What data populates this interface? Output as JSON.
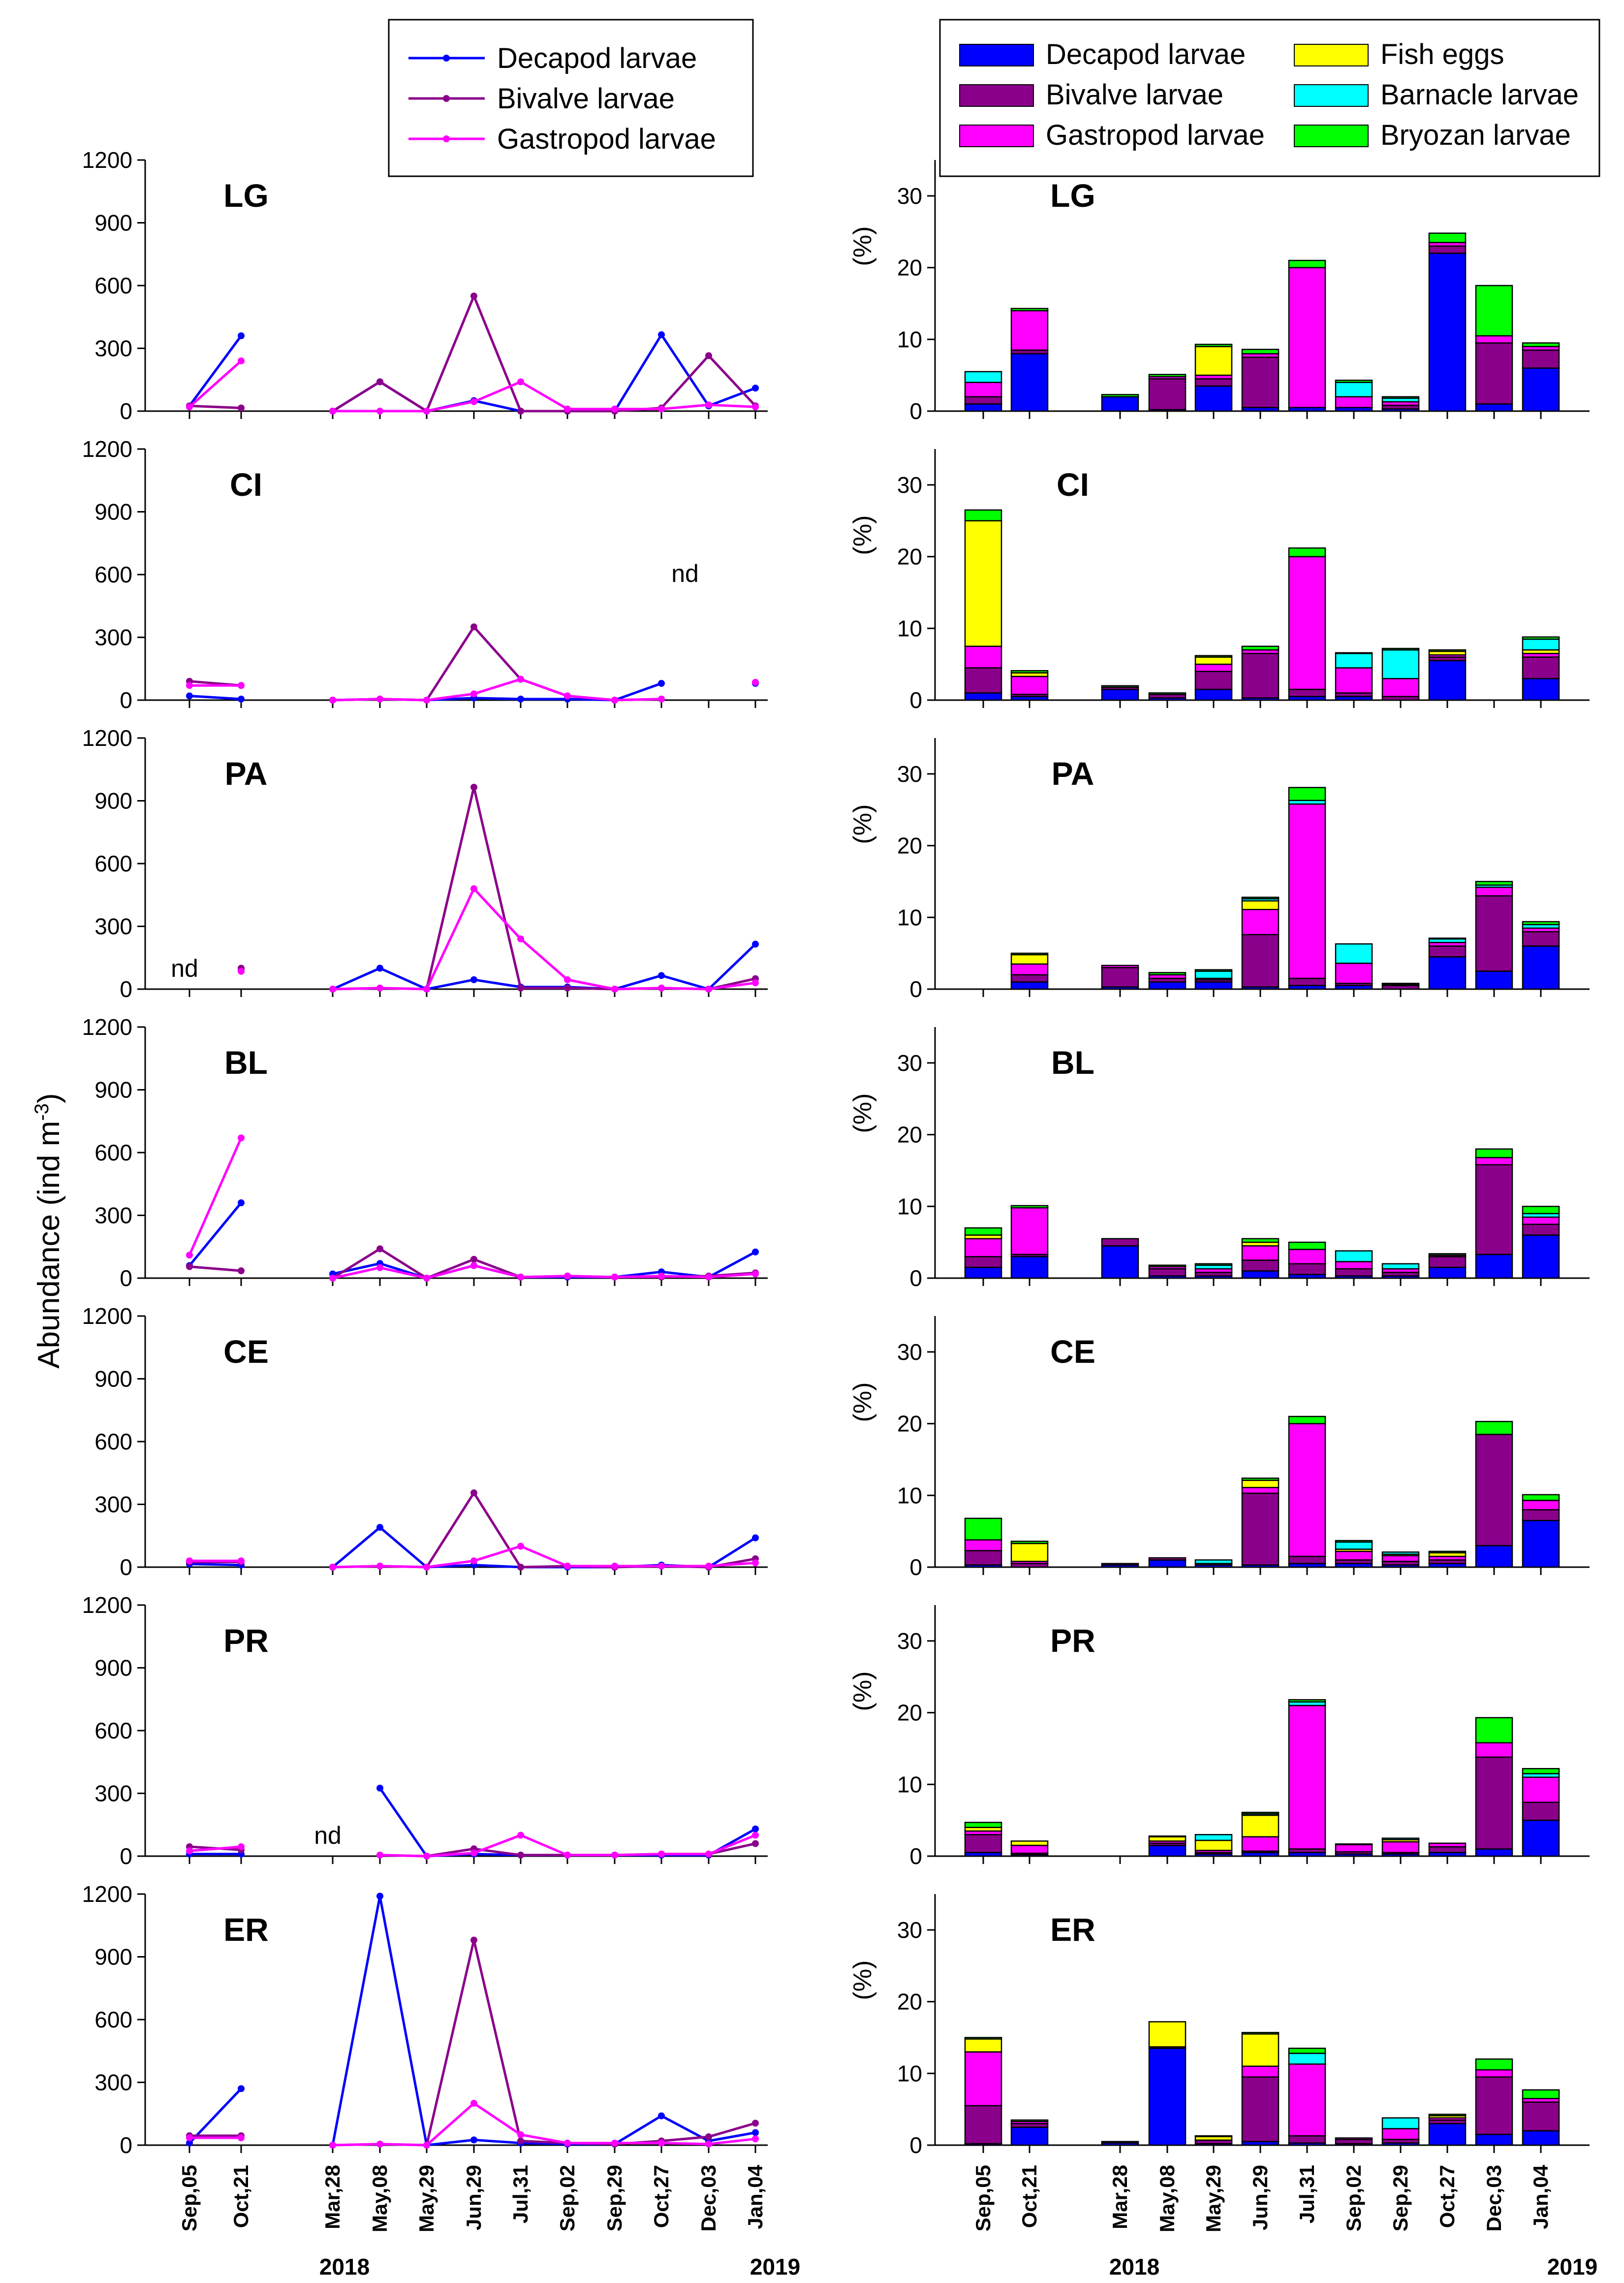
{
  "chart_data": {
    "type": "composite",
    "ylabel_left": "Abundance (ind m",
    "ylabel_left_sup": "-3",
    "ylabel_left_close": ")",
    "ylabel_right": "(%)",
    "year_labels": [
      "2018",
      "2019"
    ],
    "nd_label": "nd",
    "line_dates": [
      "Sep,05",
      "Oct,21",
      "Mar,28",
      "May,08",
      "May,29",
      "Jun,29",
      "Jul,31",
      "Sep,02",
      "Sep,29",
      "Oct,27",
      "Dec,03",
      "Jan,04"
    ],
    "bar_dates": [
      "Sep,05",
      "Oct,21",
      "Mar,28",
      "May,08",
      "May,29",
      "Jun,29",
      "Jul,31",
      "Sep,02",
      "Sep,29",
      "Oct,27",
      "Dec,03",
      "Jan,04"
    ],
    "line_legend": [
      {
        "name": "Decapod larvae",
        "color": "#0000ff"
      },
      {
        "name": "Bivalve larvae",
        "color": "#8b008b"
      },
      {
        "name": "Gastropod larvae",
        "color": "#ff00ff"
      }
    ],
    "bar_legend": [
      {
        "name": "Decapod larvae",
        "color": "#0000ff"
      },
      {
        "name": "Bivalve larvae",
        "color": "#8b008b"
      },
      {
        "name": "Gastropod larvae",
        "color": "#ff00ff"
      },
      {
        "name": "Fish eggs",
        "color": "#ffff00"
      },
      {
        "name": "Barnacle larvae",
        "color": "#00ffff"
      },
      {
        "name": "Bryozan larvae",
        "color": "#00ff00"
      }
    ],
    "line_ylim": [
      0,
      1200
    ],
    "line_yticks": [
      0,
      300,
      600,
      900,
      1200
    ],
    "bar_ylim": [
      0,
      35
    ],
    "bar_yticks": [
      0,
      10,
      20,
      30
    ],
    "panels": [
      {
        "site": "LG",
        "lines": [
          [
            25,
            360,
            0,
            140,
            0,
            50,
            0,
            0,
            0,
            365,
            25,
            110
          ],
          [
            25,
            15,
            0,
            140,
            0,
            550,
            0,
            0,
            0,
            15,
            265,
            25
          ],
          [
            20,
            240,
            0,
            0,
            0,
            45,
            140,
            10,
            10,
            10,
            30,
            20
          ]
        ],
        "bars": [
          [
            1,
            1,
            2,
            0,
            1.5,
            0
          ],
          [
            8,
            0.5,
            5.5,
            0,
            0,
            0.3
          ],
          [
            2,
            0,
            0,
            0,
            0,
            0.3
          ],
          [
            0.2,
            4.3,
            0.3,
            0,
            0,
            0.3
          ],
          [
            3.5,
            1,
            0.5,
            4,
            0,
            0.3
          ],
          [
            0.5,
            7,
            0.5,
            0,
            0,
            0.6
          ],
          [
            0.5,
            0,
            19.5,
            0,
            0,
            1
          ],
          [
            0.5,
            0,
            1.5,
            0,
            2,
            0.3
          ],
          [
            0.3,
            0.5,
            0.5,
            0,
            0.5,
            0.2
          ],
          [
            22,
            1,
            0.5,
            0,
            0,
            1.3
          ],
          [
            1,
            8.5,
            1,
            0,
            0,
            7
          ],
          [
            6,
            2.5,
            0.5,
            0,
            0,
            0.5
          ]
        ],
        "nd": []
      },
      {
        "site": "CI",
        "lines": [
          [
            20,
            5,
            0,
            5,
            0,
            10,
            5,
            5,
            0,
            80,
            null,
            80
          ],
          [
            90,
            70,
            0,
            5,
            0,
            350,
            100,
            20,
            0,
            5,
            null,
            85
          ],
          [
            70,
            70,
            0,
            5,
            0,
            30,
            100,
            20,
            0,
            5,
            null,
            85
          ]
        ],
        "bars": [
          [
            1,
            3.5,
            3,
            17.5,
            0,
            1.5
          ],
          [
            0.5,
            0.3,
            2.5,
            0.5,
            0,
            0.3
          ],
          [
            1.5,
            0.3,
            0,
            0,
            0,
            0.2
          ],
          [
            0.3,
            0.5,
            0,
            0,
            0,
            0.2
          ],
          [
            1.5,
            2.5,
            1,
            1,
            0,
            0.2
          ],
          [
            0.3,
            6.2,
            0.5,
            0,
            0,
            0.5
          ],
          [
            0.5,
            1,
            18.5,
            0,
            0,
            1.2
          ],
          [
            0.5,
            0.5,
            3.5,
            0,
            2,
            0.1
          ],
          [
            0,
            0.5,
            2.5,
            0,
            4,
            0.2
          ],
          [
            5.5,
            0.5,
            0.3,
            0.5,
            0,
            0.2
          ],
          [
            0,
            0,
            0,
            0,
            0,
            0
          ],
          [
            3,
            3,
            0.5,
            0.5,
            1.5,
            0.3
          ]
        ],
        "nd": [
          {
            "after": 9
          }
        ]
      },
      {
        "site": "PA",
        "lines": [
          [
            null,
            90,
            0,
            100,
            0,
            45,
            10,
            10,
            0,
            65,
            0,
            215
          ],
          [
            null,
            100,
            0,
            5,
            0,
            965,
            5,
            5,
            0,
            5,
            0,
            50
          ],
          [
            null,
            85,
            0,
            5,
            0,
            480,
            240,
            45,
            0,
            5,
            0,
            30
          ]
        ],
        "bars": [
          [
            0,
            0,
            0,
            0,
            0,
            0
          ],
          [
            1,
            1,
            1.5,
            1.3,
            0,
            0.2
          ],
          [
            0.3,
            2.7,
            0.3,
            0,
            0,
            0
          ],
          [
            1,
            0.5,
            0.5,
            0,
            0,
            0.3
          ],
          [
            1,
            0.3,
            0.2,
            0,
            1,
            0.2
          ],
          [
            0.3,
            7.3,
            3.5,
            1.2,
            0.3,
            0.2
          ],
          [
            0.5,
            1,
            24.3,
            0,
            0.5,
            1.8
          ],
          [
            0.5,
            0.3,
            2.8,
            0,
            2.7,
            0
          ],
          [
            0,
            0.5,
            0.1,
            0,
            0.1,
            0.1
          ],
          [
            4.5,
            1.5,
            0.5,
            0,
            0.5,
            0.1
          ],
          [
            2.5,
            10.5,
            1.2,
            0,
            0.3,
            0.5
          ],
          [
            6,
            2,
            0.5,
            0,
            0.5,
            0.4
          ]
        ],
        "nd": [
          {
            "at": 0
          }
        ]
      },
      {
        "site": "BL",
        "lines": [
          [
            60,
            360,
            20,
            70,
            0,
            60,
            5,
            5,
            5,
            30,
            5,
            125
          ],
          [
            55,
            35,
            0,
            140,
            0,
            90,
            5,
            10,
            5,
            5,
            10,
            25
          ],
          [
            110,
            670,
            0,
            50,
            0,
            60,
            5,
            10,
            5,
            10,
            5,
            20
          ]
        ],
        "bars": [
          [
            1.5,
            1.5,
            2.5,
            0.5,
            0,
            1
          ],
          [
            3,
            0.3,
            6.5,
            0,
            0,
            0.3
          ],
          [
            4.5,
            1,
            0,
            0,
            0,
            0
          ],
          [
            0.3,
            1,
            0.3,
            0,
            0,
            0.2
          ],
          [
            0.3,
            0.5,
            0.5,
            0,
            0.5,
            0.2
          ],
          [
            1,
            1.5,
            2,
            0.5,
            0,
            0.5
          ],
          [
            0.5,
            1.5,
            2,
            0,
            0,
            1
          ],
          [
            0.3,
            1,
            1,
            0,
            1.5,
            0
          ],
          [
            0.3,
            0.5,
            0.5,
            0,
            0.7,
            0
          ],
          [
            1.5,
            1.5,
            0.2,
            0,
            0,
            0.2
          ],
          [
            3.3,
            12.5,
            1,
            0,
            0,
            1.2
          ],
          [
            6,
            1.5,
            1,
            0,
            0.5,
            1
          ]
        ],
        "nd": []
      },
      {
        "site": "CE",
        "lines": [
          [
            15,
            10,
            0,
            190,
            0,
            10,
            0,
            0,
            0,
            10,
            0,
            140
          ],
          [
            25,
            25,
            0,
            5,
            0,
            355,
            0,
            5,
            0,
            5,
            0,
            40
          ],
          [
            30,
            30,
            0,
            5,
            0,
            30,
            100,
            5,
            5,
            5,
            5,
            20
          ]
        ],
        "bars": [
          [
            0.3,
            2,
            1.5,
            0,
            0,
            3
          ],
          [
            0,
            0.5,
            0.3,
            2.5,
            0,
            0.3
          ],
          [
            0.3,
            0.2,
            0,
            0,
            0,
            0
          ],
          [
            1,
            0.3,
            0,
            0,
            0,
            0
          ],
          [
            0.3,
            0.2,
            0,
            0,
            0.5,
            0
          ],
          [
            0.3,
            10,
            0.8,
            1,
            0,
            0.3
          ],
          [
            0.5,
            1,
            18.5,
            0,
            0,
            1
          ],
          [
            0.5,
            0.5,
            1.2,
            0.3,
            1,
            0.2
          ],
          [
            0.3,
            0.5,
            0.8,
            0.2,
            0.3,
            0
          ],
          [
            0.5,
            0.5,
            0.5,
            0.5,
            0,
            0.2
          ],
          [
            3,
            15.5,
            0,
            0,
            0,
            1.8
          ],
          [
            6.5,
            1.5,
            1.3,
            0,
            0,
            0.8
          ]
        ],
        "nd": []
      },
      {
        "site": "PR",
        "lines": [
          [
            10,
            10,
            null,
            325,
            0,
            10,
            5,
            5,
            5,
            5,
            5,
            130
          ],
          [
            45,
            30,
            null,
            5,
            0,
            35,
            5,
            5,
            5,
            10,
            10,
            60
          ],
          [
            25,
            45,
            null,
            5,
            0,
            15,
            100,
            5,
            5,
            10,
            10,
            100
          ]
        ],
        "bars": [
          [
            0.5,
            2.5,
            0.5,
            0.5,
            0,
            0.7
          ],
          [
            0.2,
            0.2,
            1.1,
            0.6,
            0,
            0
          ],
          [
            0,
            0,
            0,
            0,
            0,
            0
          ],
          [
            1.5,
            0.3,
            0.3,
            0.6,
            0,
            0.1
          ],
          [
            0.3,
            0.2,
            0.3,
            1.4,
            0.8,
            0
          ],
          [
            0.5,
            0.2,
            2,
            3,
            0.2,
            0.2
          ],
          [
            0.5,
            0.5,
            20,
            0,
            0.5,
            0.3
          ],
          [
            0.3,
            0.3,
            1,
            0,
            0,
            0.1
          ],
          [
            0.3,
            0.2,
            1.5,
            0.3,
            0.2,
            0
          ],
          [
            0.5,
            0.8,
            0.5,
            0,
            0,
            0
          ],
          [
            1,
            12.8,
            2,
            0,
            0,
            3.5
          ],
          [
            5,
            2.5,
            3.5,
            0,
            0.5,
            0.7
          ]
        ],
        "nd": [
          {
            "at": 2
          }
        ]
      },
      {
        "site": "ER",
        "lines": [
          [
            10,
            270,
            0,
            1190,
            0,
            25,
            10,
            5,
            5,
            140,
            20,
            60
          ],
          [
            45,
            45,
            0,
            5,
            0,
            980,
            20,
            10,
            5,
            20,
            40,
            105
          ],
          [
            35,
            35,
            0,
            5,
            0,
            200,
            50,
            10,
            10,
            10,
            5,
            30
          ]
        ],
        "bars": [
          [
            0.2,
            5.3,
            7.5,
            1.8,
            0,
            0.2
          ],
          [
            2.5,
            0.5,
            0.3,
            0,
            0,
            0.2
          ],
          [
            0.3,
            0.2,
            0,
            0,
            0,
            0
          ],
          [
            13.5,
            0.2,
            0,
            3.5,
            0,
            0
          ],
          [
            0.2,
            0.5,
            0,
            0.5,
            0,
            0.1
          ],
          [
            0.5,
            9,
            1.5,
            4.5,
            0,
            0.2
          ],
          [
            0.3,
            1,
            10,
            0,
            1.5,
            0.7
          ],
          [
            0.2,
            0.6,
            0.2,
            0,
            0,
            0
          ],
          [
            0.3,
            0.5,
            1.5,
            0,
            1.5,
            0
          ],
          [
            3,
            0.5,
            0.3,
            0.3,
            0,
            0.2
          ],
          [
            1.5,
            8,
            1,
            0,
            0,
            1.5
          ],
          [
            2,
            4,
            0.5,
            0,
            0,
            1.2
          ]
        ],
        "nd": []
      }
    ]
  }
}
